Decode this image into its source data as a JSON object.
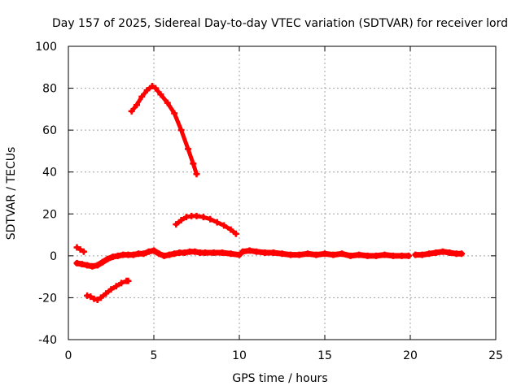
{
  "chart_data": {
    "type": "scatter",
    "title": "Day 157 of 2025, Sidereal Day-to-day VTEC variation (SDTVAR) for receiver lord",
    "xlabel": "GPS time / hours",
    "ylabel": "SDTVAR / TECUs",
    "xlim": [
      0,
      25
    ],
    "ylim": [
      -40,
      100
    ],
    "xticks": [
      0,
      5,
      10,
      15,
      20,
      25
    ],
    "yticks": [
      -40,
      -20,
      0,
      20,
      40,
      60,
      80,
      100
    ],
    "grid": true,
    "color": "#ff0000",
    "series": [
      {
        "name": "arc-high-peak",
        "x": [
          3.7,
          4.0,
          4.3,
          4.6,
          4.9,
          5.1,
          5.4,
          5.8,
          6.2,
          6.6,
          7.0,
          7.3,
          7.5
        ],
        "y": [
          69,
          72,
          76,
          79,
          81,
          80,
          77,
          73,
          68,
          60,
          51,
          44,
          39
        ]
      },
      {
        "name": "arc-mid-hump",
        "x": [
          6.3,
          6.6,
          6.9,
          7.2,
          7.5,
          7.9,
          8.3,
          8.7,
          9.1,
          9.5,
          9.8
        ],
        "y": [
          15,
          17,
          18.5,
          19,
          19,
          18.5,
          17.5,
          16,
          14.5,
          12.5,
          10.5
        ]
      },
      {
        "name": "arc-low-negative",
        "x": [
          1.1,
          1.3,
          1.5,
          1.7,
          1.9,
          2.2,
          2.5,
          2.8,
          3.1,
          3.4,
          3.5
        ],
        "y": [
          -19,
          -19.5,
          -20.5,
          -21,
          -20,
          -18,
          -16,
          -14.5,
          -13,
          -12,
          -12
        ]
      },
      {
        "name": "arc-early-short",
        "x": [
          0.5,
          0.7,
          0.9
        ],
        "y": [
          4,
          3,
          2
        ]
      },
      {
        "name": "baseline-early",
        "x": [
          0.5,
          0.8,
          1.1,
          1.4,
          1.7,
          2.0,
          2.3,
          2.6,
          2.9,
          3.2,
          3.5,
          3.8,
          4.1,
          4.4,
          4.7,
          5.0,
          5.3,
          5.6,
          5.9,
          6.2,
          6.5,
          6.8,
          7.1,
          7.4,
          7.7,
          8.0,
          8.5,
          9.0,
          9.5,
          10.0
        ],
        "y": [
          -3.5,
          -4,
          -4.5,
          -5,
          -4.5,
          -3,
          -1.5,
          -0.5,
          0,
          0.5,
          0.5,
          0.5,
          1,
          1,
          2,
          2.5,
          1,
          0,
          0.5,
          1,
          1.5,
          1.5,
          2,
          2,
          1.5,
          1.5,
          1.5,
          1.5,
          1,
          0.5
        ]
      },
      {
        "name": "baseline-mid",
        "x": [
          10.2,
          10.6,
          11.0,
          11.5,
          12.0,
          12.5,
          13.0,
          13.5,
          14.0,
          14.5,
          15.0,
          15.5,
          16.0,
          16.5,
          17.0,
          17.5,
          18.0,
          18.5,
          19.0,
          19.5,
          19.9
        ],
        "y": [
          2,
          2.5,
          2,
          1.5,
          1.5,
          1,
          0.5,
          0.5,
          1,
          0.5,
          1,
          0.5,
          1,
          0,
          0.5,
          0,
          0,
          0.5,
          0,
          0,
          0
        ]
      },
      {
        "name": "baseline-late",
        "x": [
          20.3,
          20.7,
          21.1,
          21.5,
          21.9,
          22.3,
          22.7,
          23.0
        ],
        "y": [
          0.5,
          0.5,
          1,
          1.5,
          2,
          1.5,
          1,
          1
        ]
      }
    ]
  }
}
